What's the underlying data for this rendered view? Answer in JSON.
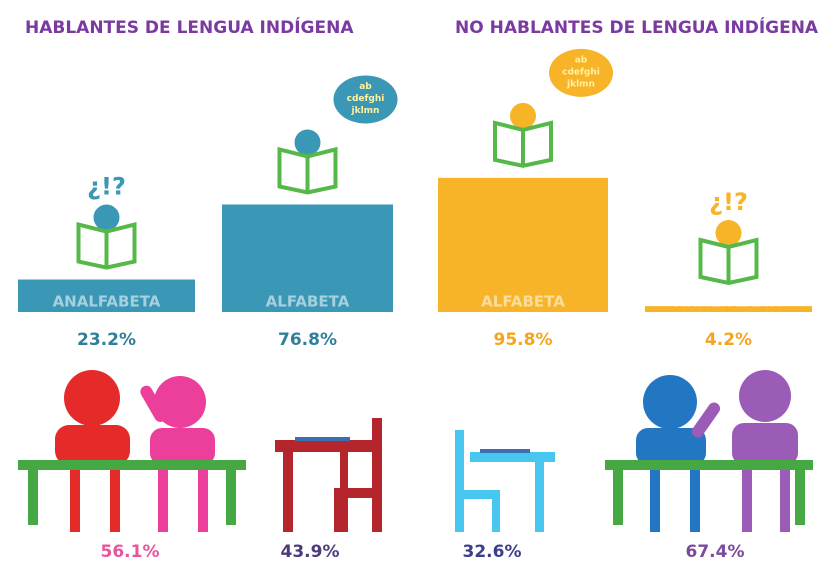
{
  "sections": [
    {
      "title": "HABLANTES DE LENGUA INDÍGENA",
      "color": "#3a97b5"
    },
    {
      "title": "NO HABLANTES DE LENGUA INDÍGENA",
      "color": "#f8b428"
    }
  ],
  "bars": [
    {
      "label": "ANALFABETA",
      "value": 23.2,
      "value_label": "23.2%",
      "color": "#3a97b5",
      "text_color": "#2f7f9b"
    },
    {
      "label": "ALFABETA",
      "value": 76.8,
      "value_label": "76.8%",
      "color": "#3a97b5",
      "text_color": "#2f7f9b"
    },
    {
      "label": "ALFABETA",
      "value": 95.8,
      "value_label": "95.8%",
      "color": "#f8b428",
      "text_color": "#f3a51c"
    },
    {
      "label": "ANALFABETA",
      "value": 4.2,
      "value_label": "4.2%",
      "color": "#f8b428",
      "text_color": "#f3a51c"
    }
  ],
  "bubble": [
    "ab",
    "cdefghi",
    "jklmn"
  ],
  "doubt": "¿!?",
  "bottom": [
    {
      "label": "56.1%",
      "color": "#e8559c"
    },
    {
      "label": "43.9%",
      "color": "#4e3a7c"
    },
    {
      "label": "32.6%",
      "color": "#3b3f8a"
    },
    {
      "label": "67.4%",
      "color": "#7b4a9b"
    }
  ]
}
